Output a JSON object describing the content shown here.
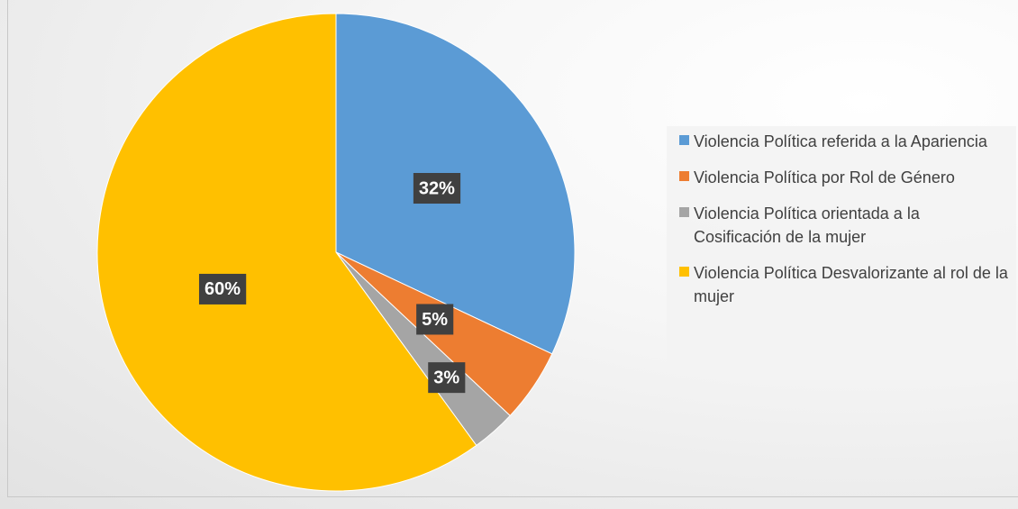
{
  "chart_data": {
    "type": "pie",
    "categories": [
      "Violencia Política referida a la Apariencia",
      "Violencia Política por Rol de Género",
      "Violencia Política orientada a la Cosificación de la mujer",
      "Violencia Política Desvalorizante al rol de la mujer"
    ],
    "values": [
      32,
      5,
      3,
      60
    ],
    "value_labels": [
      "32%",
      "5%",
      "3%",
      "60%"
    ],
    "colors": [
      "#5b9bd5",
      "#ed7d31",
      "#a5a5a5",
      "#ffc000"
    ],
    "legend": "right"
  }
}
